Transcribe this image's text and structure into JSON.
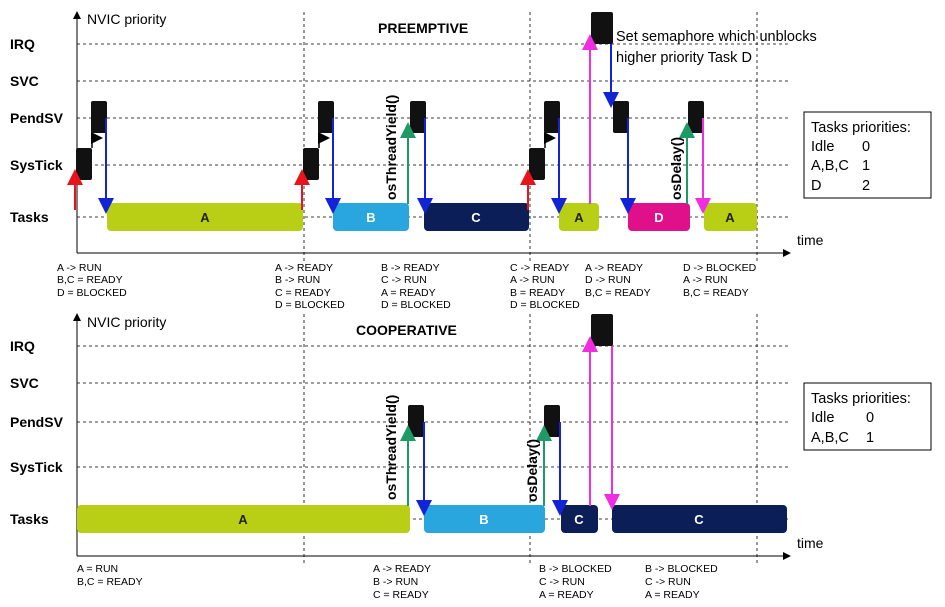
{
  "colors": {
    "task_a": "#b9cf15",
    "task_b": "#2aa6de",
    "task_c": "#0c1e57",
    "task_d": "#e0108a",
    "isr_block": "#111111",
    "arrow_red": "#e8141b",
    "arrow_blue": "#1224d6",
    "arrow_green": "#1d9a66",
    "arrow_black": "#000000",
    "arrow_magenta": "#f02de0"
  },
  "preemptive": {
    "title": "PREEMPTIVE",
    "y_axis_label": "NVIC priority",
    "x_axis_label": "time",
    "rows": [
      "IRQ",
      "SVC",
      "PendSV",
      "SysTick",
      "Tasks"
    ],
    "tasks": [
      {
        "label": "A",
        "color": "task_a"
      },
      {
        "label": "B",
        "color": "task_b"
      },
      {
        "label": "C",
        "color": "task_c"
      },
      {
        "label": "A",
        "color": "task_a"
      },
      {
        "label": "D",
        "color": "task_d"
      },
      {
        "label": "A",
        "color": "task_a"
      }
    ],
    "calls": [
      "osThreadYield()",
      "osDelay()"
    ],
    "annotation": [
      "Set semaphore which unblocks",
      "higher priority Task D"
    ],
    "priorities_title": "Tasks priorities:",
    "priorities": [
      {
        "name": "Idle",
        "value": "0"
      },
      {
        "name": "A,B,C",
        "value": "1"
      },
      {
        "name": "D",
        "value": "2"
      }
    ],
    "notes": [
      [
        "A -> RUN",
        "B,C = READY",
        "D = BLOCKED"
      ],
      [
        "A -> READY",
        "B -> RUN",
        "C = READY",
        "D = BLOCKED"
      ],
      [
        "B -> READY",
        "C -> RUN",
        "A = READY",
        "D = BLOCKED"
      ],
      [
        "C -> READY",
        "A -> RUN",
        "B = READY",
        "D = BLOCKED"
      ],
      [
        "A -> READY",
        "D -> RUN",
        "B,C = READY"
      ],
      [
        "D -> BLOCKED",
        "A -> RUN",
        "B,C = READY"
      ]
    ]
  },
  "cooperative": {
    "title": "COOPERATIVE",
    "y_axis_label": "NVIC priority",
    "x_axis_label": "time",
    "rows": [
      "IRQ",
      "SVC",
      "PendSV",
      "SysTick",
      "Tasks"
    ],
    "tasks": [
      {
        "label": "A",
        "color": "task_a"
      },
      {
        "label": "B",
        "color": "task_b"
      },
      {
        "label": "C",
        "color": "task_c"
      },
      {
        "label": "C",
        "color": "task_c"
      }
    ],
    "calls": [
      "osThreadYield()",
      "osDelay()"
    ],
    "priorities_title": "Tasks priorities:",
    "priorities": [
      {
        "name": "Idle",
        "value": "0"
      },
      {
        "name": "A,B,C",
        "value": "1"
      }
    ],
    "notes": [
      [
        "A = RUN",
        "B,C = READY"
      ],
      [
        "A -> READY",
        "B -> RUN",
        "C = READY"
      ],
      [
        "B -> BLOCKED",
        "C -> RUN",
        "A = READY"
      ],
      [
        "B -> BLOCKED",
        "C -> RUN",
        "A = READY"
      ]
    ]
  }
}
